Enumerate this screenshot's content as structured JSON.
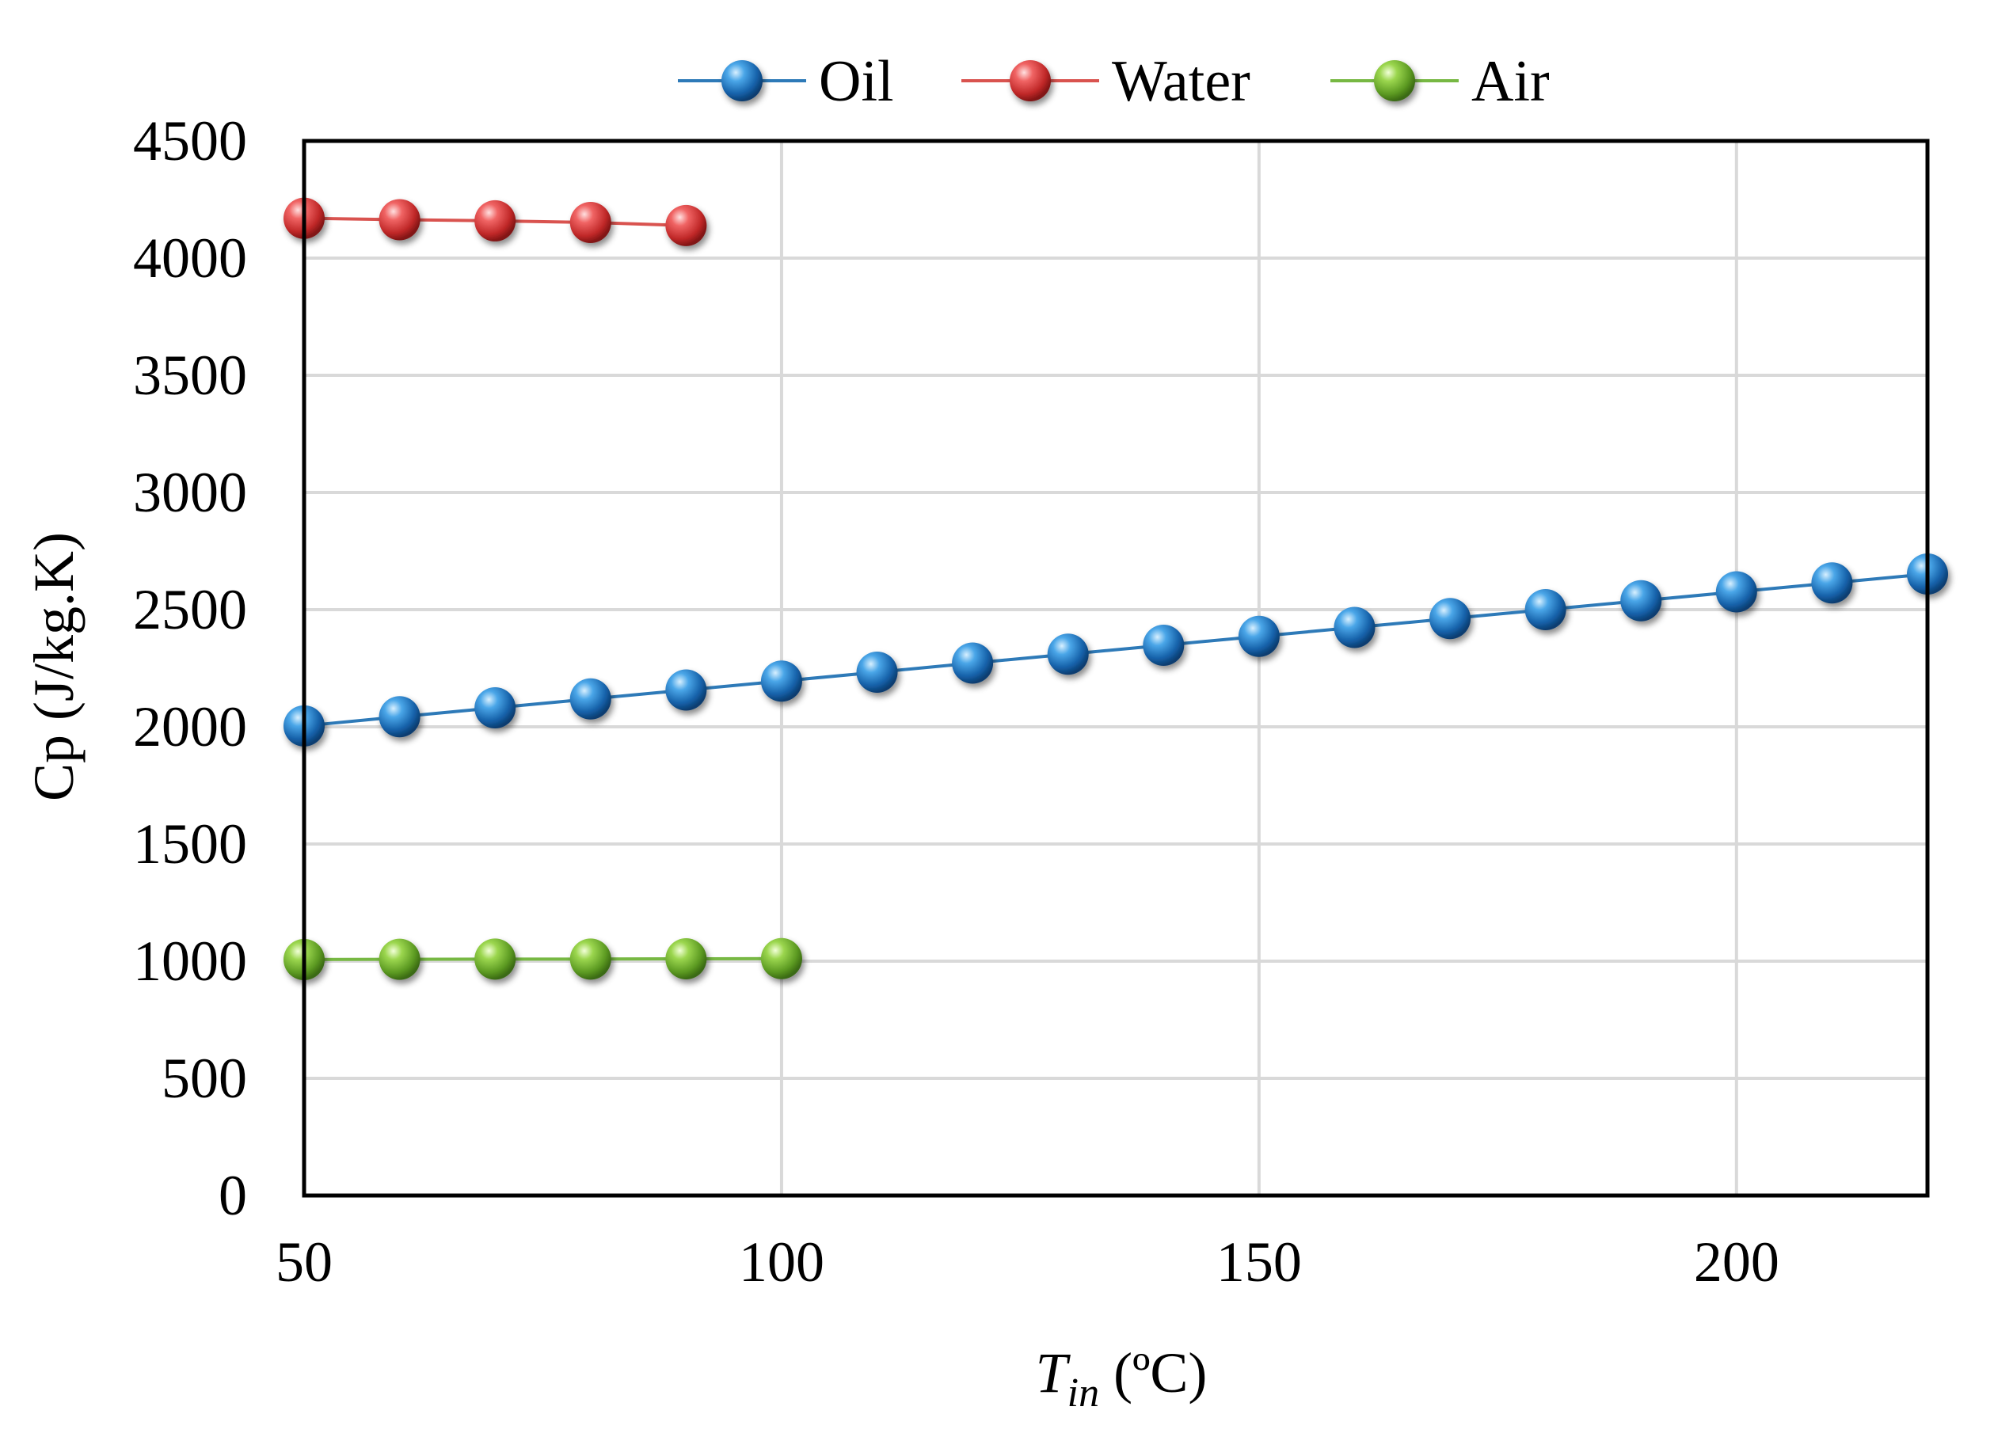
{
  "chart_data": {
    "type": "line",
    "title": "",
    "xlabel": {
      "main": "T",
      "subscript": "in",
      "unit": " (ºC)"
    },
    "ylabel": "Cp (J/kg.K)",
    "xlim": [
      50,
      220
    ],
    "ylim": [
      0,
      4500
    ],
    "x_ticks": [
      50,
      100,
      150,
      200
    ],
    "y_ticks": [
      0,
      500,
      1000,
      1500,
      2000,
      2500,
      3000,
      3500,
      4000,
      4500
    ],
    "grid": true,
    "legend_position": "top",
    "series": [
      {
        "name": "Oil",
        "color": "#1f78c8",
        "line_color": "#2e7ab8",
        "x": [
          50,
          60,
          70,
          80,
          90,
          100,
          110,
          120,
          130,
          140,
          150,
          160,
          170,
          180,
          190,
          200,
          210,
          220
        ],
        "values": [
          2004,
          2043,
          2081,
          2119,
          2157,
          2195,
          2233,
          2272,
          2310,
          2348,
          2386,
          2424,
          2462,
          2500,
          2538,
          2576,
          2614,
          2652
        ]
      },
      {
        "name": "Water",
        "color": "#e03a3a",
        "line_color": "#d9534f",
        "x": [
          50,
          60,
          70,
          80,
          90
        ],
        "values": [
          4170,
          4164,
          4159,
          4152,
          4139
        ]
      },
      {
        "name": "Air",
        "color": "#7cc23a",
        "line_color": "#77b843",
        "x": [
          50,
          60,
          70,
          80,
          90,
          100
        ],
        "values": [
          1007,
          1008,
          1009,
          1009,
          1010,
          1011
        ]
      }
    ]
  }
}
